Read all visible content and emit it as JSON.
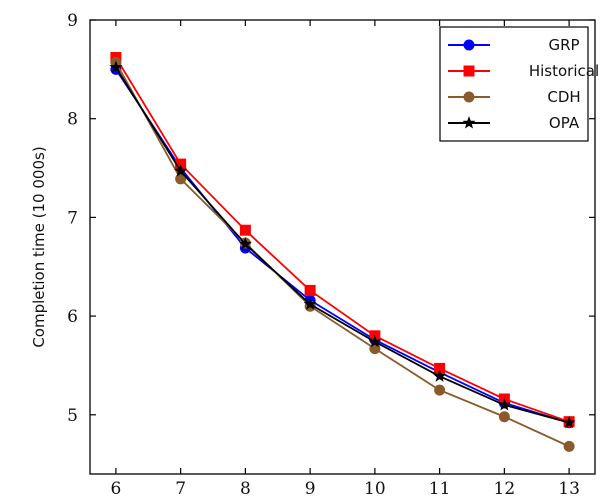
{
  "chart_data": {
    "type": "line",
    "title": "",
    "xlabel": "",
    "ylabel": "Completion time (10 000s)",
    "x": [
      6,
      7,
      8,
      9,
      10,
      11,
      12,
      13
    ],
    "xlim": [
      5.6,
      13.4
    ],
    "ylim": [
      4.4,
      9
    ],
    "yticks": [
      5,
      6,
      7,
      8,
      9
    ],
    "grid": false,
    "legend_position": "top-right",
    "series": [
      {
        "name": "GRP",
        "color": "#0000ff",
        "marker": "circle",
        "values": [
          8.5,
          7.5,
          6.69,
          6.16,
          5.76,
          5.43,
          5.12,
          4.92
        ]
      },
      {
        "name": "Historical",
        "color": "#ff0000",
        "marker": "square",
        "values": [
          8.62,
          7.54,
          6.87,
          6.26,
          5.8,
          5.47,
          5.16,
          4.93
        ]
      },
      {
        "name": "CDH",
        "color": "#8b5a2b",
        "marker": "circle",
        "values": [
          8.57,
          7.39,
          6.74,
          6.1,
          5.67,
          5.25,
          4.98,
          4.68
        ]
      },
      {
        "name": "OPA",
        "color": "#000000",
        "marker": "star",
        "values": [
          8.52,
          7.47,
          6.73,
          6.12,
          5.74,
          5.39,
          5.1,
          4.92
        ]
      }
    ]
  }
}
